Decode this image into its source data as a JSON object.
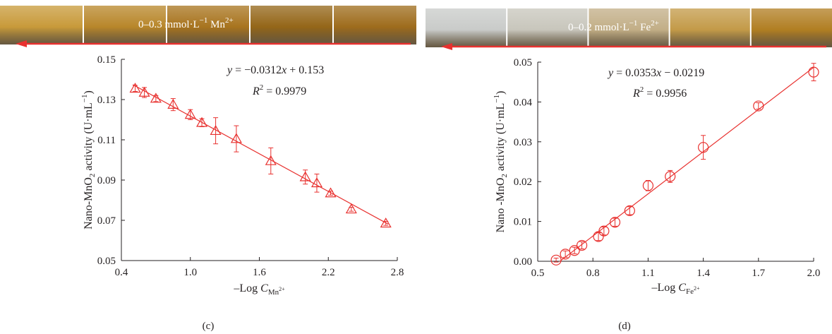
{
  "colors": {
    "series": "#e8312f",
    "axis": "#231f20",
    "photo_mn": [
      "#c89a3a",
      "#b8862a",
      "#a8741e",
      "#946618",
      "#9e6c1c"
    ],
    "photo_fe": [
      "#c9cbc9",
      "#c8c6bc",
      "#c2ae86",
      "#c39a48",
      "#b17e22"
    ]
  },
  "chart_data": [
    {
      "type": "scatter",
      "panel_label": "(c)",
      "photo_label_prefix": "0–0.3 mmol·L",
      "photo_label_sup": "−1",
      "photo_label_suffix": " Mn",
      "photo_label_ion_sup": "2+",
      "ylabel_pre": "Nano-MnO",
      "ylabel_sub": "2",
      "ylabel_post": " activity (U·mL",
      "ylabel_sup": "−1",
      "ylabel_close": ")",
      "xlabel_pre": "–Log ",
      "xlabel_var": "C",
      "xlabel_sub": "Mn",
      "xlabel_subsup": "2+",
      "equation_y": "y",
      "equation_rest": " = −0.0312",
      "equation_x": "x",
      "equation_tail": " + 0.153",
      "r2_label": "R",
      "r2_sup": "2",
      "r2_value": " = 0.9979",
      "xlim": [
        0.4,
        2.8
      ],
      "ylim": [
        0.05,
        0.15
      ],
      "xticks": [
        "0.4",
        "1.0",
        "1.6",
        "2.2",
        "2.8"
      ],
      "yticks": [
        "0.05",
        "0.07",
        "0.09",
        "0.11",
        "0.13",
        "0.15"
      ],
      "marker": "triangle",
      "x": [
        0.52,
        0.6,
        0.7,
        0.85,
        1.0,
        1.1,
        1.22,
        1.4,
        1.7,
        2.0,
        2.1,
        2.22,
        2.4,
        2.7
      ],
      "y": [
        0.1355,
        0.1335,
        0.1305,
        0.1275,
        0.1225,
        0.1185,
        0.1145,
        0.1105,
        0.0995,
        0.0915,
        0.0885,
        0.0835,
        0.0755,
        0.0685
      ],
      "err": [
        0.0015,
        0.0025,
        0.0015,
        0.003,
        0.0025,
        0.002,
        0.0065,
        0.0065,
        0.0065,
        0.0035,
        0.0045,
        0.001,
        0.001,
        0.001
      ],
      "fit": {
        "slope": -0.0312,
        "intercept": 0.153,
        "x_range": [
          0.5,
          2.72
        ]
      }
    },
    {
      "type": "scatter",
      "panel_label": "(d)",
      "photo_label_prefix": "0–0.2 mmol·L",
      "photo_label_sup": "−1",
      "photo_label_suffix": " Fe",
      "photo_label_ion_sup": "2+",
      "ylabel_pre": "Nano -MnO",
      "ylabel_sub": "2",
      "ylabel_post": " activity (U·mL",
      "ylabel_sup": "−1",
      "ylabel_close": ")",
      "xlabel_pre": "–Log ",
      "xlabel_var": "C",
      "xlabel_sub": "Fe",
      "xlabel_subsup": "2+",
      "equation_y": "y",
      "equation_rest": " = 0.0353",
      "equation_x": "x",
      "equation_tail": " − 0.0219",
      "r2_label": "R",
      "r2_sup": "2",
      "r2_value": " = 0.9956",
      "xlim": [
        0.5,
        2.0
      ],
      "ylim": [
        0.0,
        0.05
      ],
      "xticks": [
        "0.5",
        "0.8",
        "1.1",
        "1.4",
        "1.7",
        "2.0"
      ],
      "yticks": [
        "0.00",
        "0.01",
        "0.02",
        "0.03",
        "0.04",
        "0.05"
      ],
      "marker": "circle",
      "x": [
        0.6,
        0.65,
        0.7,
        0.74,
        0.83,
        0.86,
        0.92,
        1.0,
        1.1,
        1.22,
        1.4,
        1.7,
        2.0
      ],
      "y": [
        0.0003,
        0.0018,
        0.0027,
        0.004,
        0.0062,
        0.0076,
        0.0098,
        0.0127,
        0.019,
        0.0213,
        0.0286,
        0.039,
        0.0475
      ],
      "err": [
        0.0005,
        0.0008,
        0.0008,
        0.0009,
        0.001,
        0.001,
        0.001,
        0.001,
        0.0013,
        0.0015,
        0.003,
        0.0008,
        0.0022
      ],
      "fit": {
        "slope": 0.0353,
        "intercept": -0.0219,
        "x_range": [
          0.62,
          2.0
        ]
      }
    }
  ]
}
